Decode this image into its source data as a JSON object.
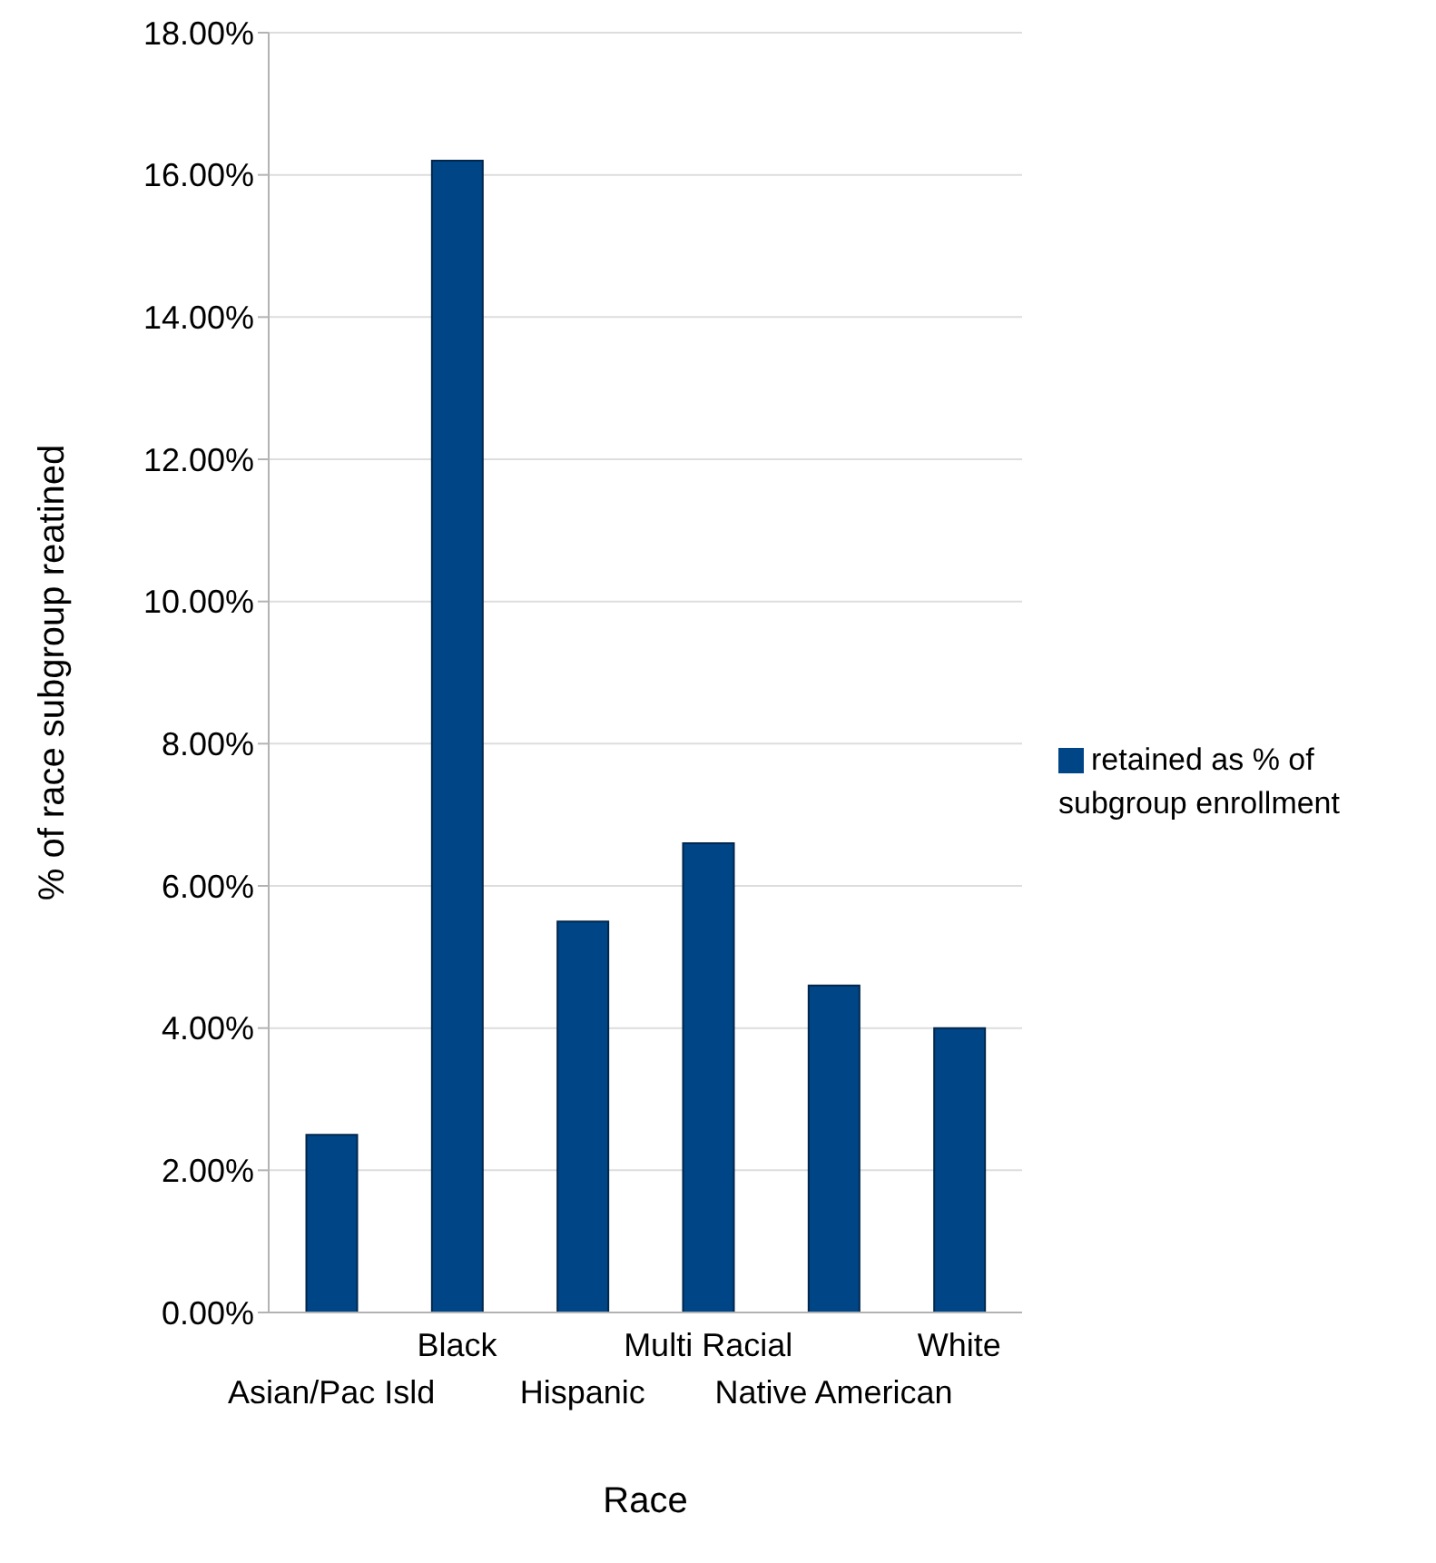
{
  "chart_data": {
    "type": "bar",
    "xlabel": "Race",
    "ylabel": "% of race subgroup reatined",
    "categories": [
      "Asian/Pac Isld",
      "Black",
      "Hispanic",
      "Multi Racial",
      "Native American",
      "White"
    ],
    "series": [
      {
        "name": "retained as % of subgroup enrollment",
        "color": "#004586",
        "values": [
          2.5,
          16.2,
          5.5,
          6.6,
          4.6,
          4.0
        ]
      }
    ],
    "ylim": [
      0,
      18
    ],
    "yticks": [
      {
        "value": 0,
        "label": "0.00%"
      },
      {
        "value": 2,
        "label": "2.00%"
      },
      {
        "value": 4,
        "label": "4.00%"
      },
      {
        "value": 6,
        "label": "6.00%"
      },
      {
        "value": 8,
        "label": "8.00%"
      },
      {
        "value": 10,
        "label": "10.00%"
      },
      {
        "value": 12,
        "label": "12.00%"
      },
      {
        "value": 14,
        "label": "14.00%"
      },
      {
        "value": 16,
        "label": "16.00%"
      },
      {
        "value": 18,
        "label": "18.00%"
      }
    ],
    "grid": "y",
    "legend": "right"
  }
}
